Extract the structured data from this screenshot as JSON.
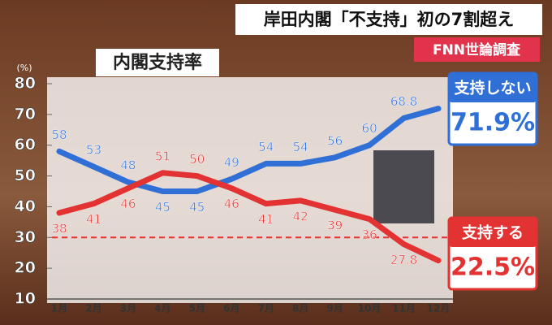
{
  "chart_data": {
    "type": "line",
    "title": "岸田内閣「不支持」初の7割超え",
    "source": "FNN世論調査",
    "subtitle": "内閣支持率",
    "y_unit": "(%)",
    "categories": [
      "1月",
      "2月",
      "3月",
      "4月",
      "5月",
      "6月",
      "7月",
      "8月",
      "9月",
      "10月",
      "11月",
      "12月"
    ],
    "series": [
      {
        "name": "支持しない",
        "color": "#2f6fd6",
        "values": [
          58,
          53,
          48,
          45,
          45,
          49,
          54,
          54,
          56,
          60,
          68.8,
          71.9
        ],
        "value_labels": [
          "58",
          "53",
          "48",
          "45",
          "45",
          "49",
          "54",
          "54",
          "56",
          "60",
          "68.8",
          "71.9%"
        ]
      },
      {
        "name": "支持する",
        "color": "#e23232",
        "values": [
          38,
          41,
          46,
          51,
          50,
          46,
          41,
          42,
          39,
          36,
          27.8,
          22.5
        ],
        "value_labels": [
          "38",
          "41",
          "46",
          "51",
          "50",
          "46",
          "41",
          "42",
          "39",
          "36",
          "27.8",
          "22.5%"
        ]
      }
    ],
    "ylim": [
      10,
      80
    ],
    "yticks": [
      10,
      20,
      30,
      40,
      50,
      60,
      70,
      80
    ],
    "reference_line": 30
  }
}
